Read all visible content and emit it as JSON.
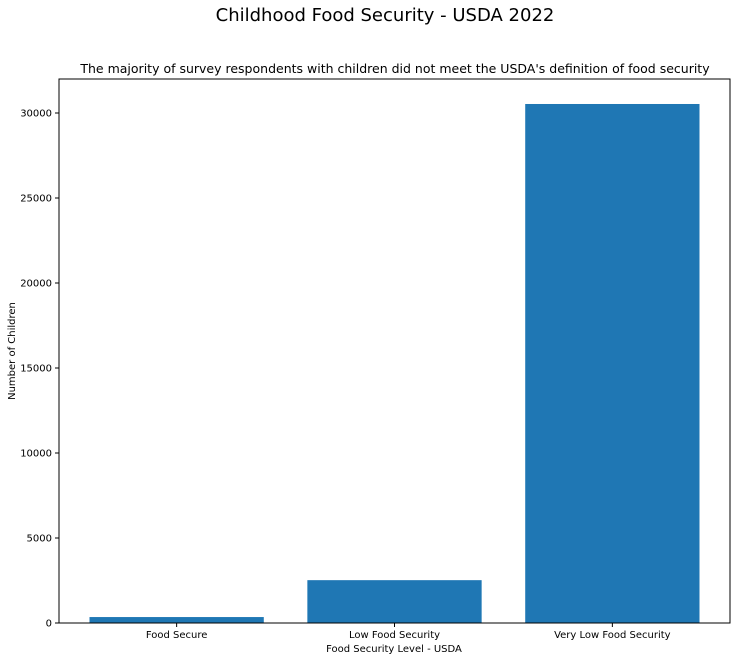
{
  "chart_data": {
    "type": "bar",
    "title": "Childhood Food Security - USDA 2022",
    "subtitle": "The majority of survey respondents with children did not meet the USDA's definition of food security",
    "xlabel": "Food Security Level - USDA",
    "ylabel": "Number of Children",
    "categories": [
      "Food Secure",
      "Low Food Security",
      "Very Low Food Security"
    ],
    "values": [
      350,
      2520,
      30530
    ],
    "ylim": [
      0,
      32000
    ],
    "yticks": [
      0,
      5000,
      10000,
      15000,
      20000,
      25000,
      30000
    ],
    "ytick_labels": [
      "0",
      "5000",
      "10000",
      "15000",
      "20000",
      "25000",
      "30000"
    ],
    "grid": false,
    "legend": "none",
    "bar_color": "#1f77b4"
  }
}
